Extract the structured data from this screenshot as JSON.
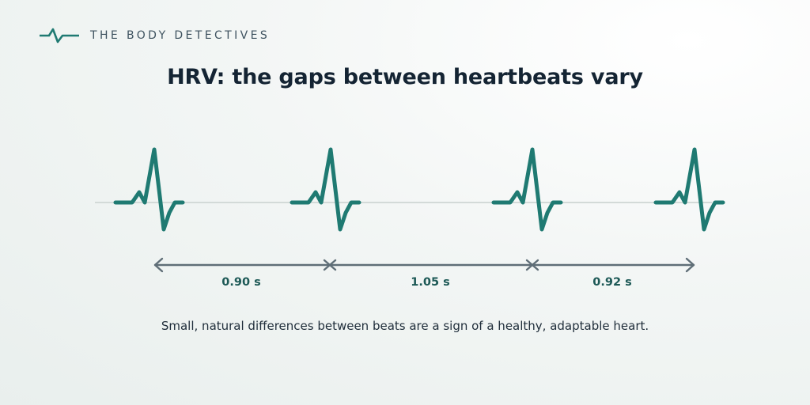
{
  "brand": {
    "name": "THE BODY DETECTIVES",
    "logo_icon": "heartbeat-line-icon",
    "accent": "#1f7a72"
  },
  "title": "HRV: the gaps between heartbeats vary",
  "intervals": [
    {
      "label": "0.90 s",
      "seconds": 0.9
    },
    {
      "label": "1.05 s",
      "seconds": 1.05
    },
    {
      "label": "0.92 s",
      "seconds": 0.92
    }
  ],
  "beat_count": 4,
  "caption": "Small, natural differences between beats are a sign of a healthy, adaptable heart.",
  "colors": {
    "waveform": "#1f7a72",
    "baseline": "#d3dad8",
    "arrow": "#5f6e77",
    "title": "#142433",
    "interval_label": "#1d5956"
  }
}
